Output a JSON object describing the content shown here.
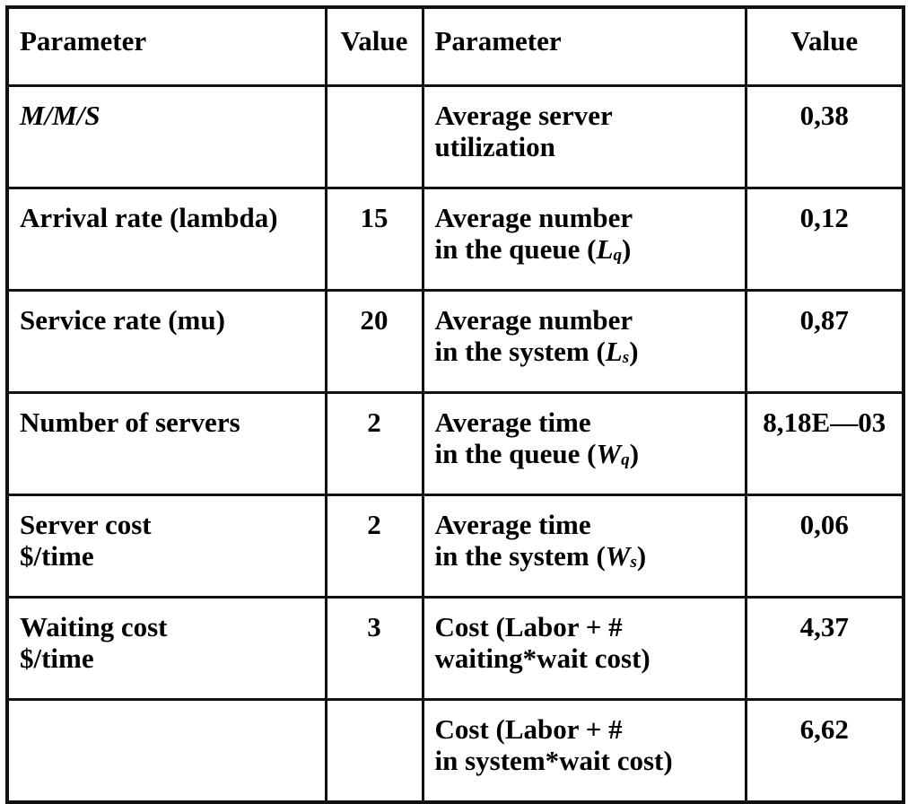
{
  "header": {
    "col1": "Parameter",
    "col2": "Value",
    "col3": "Parameter",
    "col4": "Value"
  },
  "rows": [
    {
      "left_label": "M/M/S",
      "left_value": "",
      "right_line1": "Average server",
      "right_line2": "utilization",
      "right_value": "0,38"
    },
    {
      "left_label": "Arrival rate (lambda)",
      "left_value": "15",
      "right_line1": "Average number",
      "right_line2_prefix": "in the queue (",
      "right_symbol": "L",
      "right_subscript": "q",
      "right_line2_suffix": ")",
      "right_value": "0,12"
    },
    {
      "left_label": "Service rate (mu)",
      "left_value": "20",
      "right_line1": "Average number",
      "right_line2_prefix": "in the system (",
      "right_symbol": "L",
      "right_subscript": "s",
      "right_line2_suffix": ")",
      "right_value": "0,87"
    },
    {
      "left_label": "Number of servers",
      "left_value": "2",
      "right_line1": "Average time",
      "right_line2_prefix": "in the queue (",
      "right_symbol": "W",
      "right_subscript": "q",
      "right_line2_suffix": ")",
      "right_value": "8,18E—03"
    },
    {
      "left_line1": "Server cost",
      "left_line2": "$/time",
      "left_value": "2",
      "right_line1": "Average time",
      "right_line2_prefix": "in the system (",
      "right_symbol": "W",
      "right_subscript": "s",
      "right_line2_suffix": ")",
      "right_value": "0,06"
    },
    {
      "left_line1": "Waiting cost",
      "left_line2": "$/time",
      "left_value": "3",
      "right_line1": "Cost (Labor + #",
      "right_line2": "waiting*wait cost)",
      "right_value": "4,37"
    },
    {
      "left_label": "",
      "left_value": "",
      "right_line1": "Cost (Labor + #",
      "right_line2": "in system*wait cost)",
      "right_value": "6,62"
    }
  ]
}
